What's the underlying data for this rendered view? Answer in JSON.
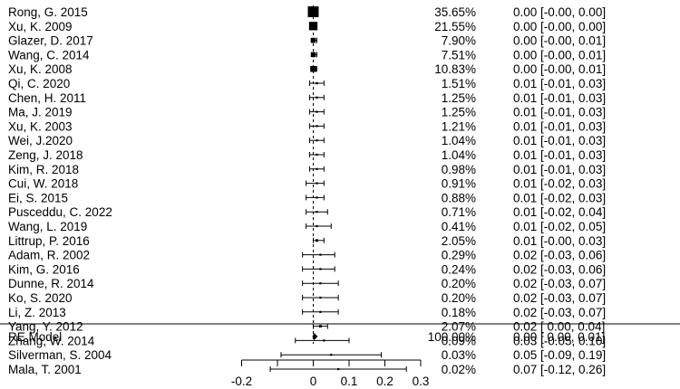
{
  "chart_data": {
    "type": "forest",
    "title": "",
    "xlabel": "",
    "xlim": [
      -0.2,
      0.3
    ],
    "xticks": [
      -0.2,
      -0.1,
      0,
      0.1,
      0.2,
      0.3
    ],
    "xtick_labels": [
      "-0.2",
      "",
      "0",
      "0.1",
      "0.2",
      "0.3"
    ],
    "reference_line": 0,
    "studies": [
      {
        "label": "Rong, G. 2015",
        "weight": "35.65%",
        "estimate": 0.0,
        "ci_low": -0.0,
        "ci_high": 0.0,
        "ci_text": "0.00 [-0.00, 0.00]"
      },
      {
        "label": "Xu, K. 2009",
        "weight": "21.55%",
        "estimate": 0.0,
        "ci_low": -0.0,
        "ci_high": 0.0,
        "ci_text": "0.00 [-0.00, 0.00]"
      },
      {
        "label": "Glazer, D. 2017",
        "weight": "7.90%",
        "estimate": 0.0,
        "ci_low": -0.0,
        "ci_high": 0.01,
        "ci_text": "0.00 [-0.00, 0.01]"
      },
      {
        "label": "Wang, C. 2014",
        "weight": "7.51%",
        "estimate": 0.0,
        "ci_low": -0.0,
        "ci_high": 0.01,
        "ci_text": "0.00 [-0.00, 0.01]"
      },
      {
        "label": "Xu, K. 2008",
        "weight": "10.83%",
        "estimate": 0.0,
        "ci_low": -0.0,
        "ci_high": 0.01,
        "ci_text": "0.00 [-0.00, 0.01]"
      },
      {
        "label": "Qi, C. 2020",
        "weight": "1.51%",
        "estimate": 0.01,
        "ci_low": -0.01,
        "ci_high": 0.03,
        "ci_text": "0.01 [-0.01, 0.03]"
      },
      {
        "label": "Chen, H. 2011",
        "weight": "1.25%",
        "estimate": 0.01,
        "ci_low": -0.01,
        "ci_high": 0.03,
        "ci_text": "0.01 [-0.01, 0.03]"
      },
      {
        "label": "Ma, J. 2019",
        "weight": "1.25%",
        "estimate": 0.01,
        "ci_low": -0.01,
        "ci_high": 0.03,
        "ci_text": "0.01 [-0.01, 0.03]"
      },
      {
        "label": "Xu, K. 2003",
        "weight": "1.21%",
        "estimate": 0.01,
        "ci_low": -0.01,
        "ci_high": 0.03,
        "ci_text": "0.01 [-0.01, 0.03]"
      },
      {
        "label": "Wei, J.2020",
        "weight": "1.04%",
        "estimate": 0.01,
        "ci_low": -0.01,
        "ci_high": 0.03,
        "ci_text": "0.01 [-0.01, 0.03]"
      },
      {
        "label": "Zeng, J. 2018",
        "weight": "1.04%",
        "estimate": 0.01,
        "ci_low": -0.01,
        "ci_high": 0.03,
        "ci_text": "0.01 [-0.01, 0.03]"
      },
      {
        "label": "Kim, R. 2018",
        "weight": "0.98%",
        "estimate": 0.01,
        "ci_low": -0.01,
        "ci_high": 0.03,
        "ci_text": "0.01 [-0.01, 0.03]"
      },
      {
        "label": "Cui, W. 2018",
        "weight": "0.91%",
        "estimate": 0.01,
        "ci_low": -0.02,
        "ci_high": 0.03,
        "ci_text": "0.01 [-0.02, 0.03]"
      },
      {
        "label": "Ei, S. 2015",
        "weight": "0.88%",
        "estimate": 0.01,
        "ci_low": -0.02,
        "ci_high": 0.03,
        "ci_text": "0.01 [-0.02, 0.03]"
      },
      {
        "label": "Pusceddu, C. 2022",
        "weight": "0.71%",
        "estimate": 0.01,
        "ci_low": -0.02,
        "ci_high": 0.04,
        "ci_text": "0.01 [-0.02, 0.04]"
      },
      {
        "label": "Wang, L. 2019",
        "weight": "0.41%",
        "estimate": 0.01,
        "ci_low": -0.02,
        "ci_high": 0.05,
        "ci_text": "0.01 [-0.02, 0.05]"
      },
      {
        "label": "Littrup, P. 2016",
        "weight": "2.05%",
        "estimate": 0.01,
        "ci_low": -0.0,
        "ci_high": 0.03,
        "ci_text": "0.01 [-0.00, 0.03]"
      },
      {
        "label": "Adam, R. 2002",
        "weight": "0.29%",
        "estimate": 0.02,
        "ci_low": -0.03,
        "ci_high": 0.06,
        "ci_text": "0.02 [-0.03, 0.06]"
      },
      {
        "label": "Kim, G. 2016",
        "weight": "0.24%",
        "estimate": 0.02,
        "ci_low": -0.03,
        "ci_high": 0.06,
        "ci_text": "0.02 [-0.03, 0.06]"
      },
      {
        "label": "Dunne, R. 2014",
        "weight": "0.20%",
        "estimate": 0.02,
        "ci_low": -0.03,
        "ci_high": 0.07,
        "ci_text": "0.02 [-0.03, 0.07]"
      },
      {
        "label": "Ko, S. 2020",
        "weight": "0.20%",
        "estimate": 0.02,
        "ci_low": -0.03,
        "ci_high": 0.07,
        "ci_text": "0.02 [-0.03, 0.07]"
      },
      {
        "label": "Li, Z. 2013",
        "weight": "0.18%",
        "estimate": 0.02,
        "ci_low": -0.03,
        "ci_high": 0.07,
        "ci_text": "0.02 [-0.03, 0.07]"
      },
      {
        "label": "Yang, Y. 2012",
        "weight": "2.07%",
        "estimate": 0.02,
        "ci_low": 0.0,
        "ci_high": 0.04,
        "ci_text": "0.02 [ 0.00, 0.04]"
      },
      {
        "label": "Zhang, W. 2014",
        "weight": "0.09%",
        "estimate": 0.03,
        "ci_low": -0.05,
        "ci_high": 0.1,
        "ci_text": "0.03 [-0.05, 0.10]"
      },
      {
        "label": "Silverman, S. 2004",
        "weight": "0.03%",
        "estimate": 0.05,
        "ci_low": -0.09,
        "ci_high": 0.19,
        "ci_text": "0.05 [-0.09, 0.19]"
      },
      {
        "label": "Mala, T. 2001",
        "weight": "0.02%",
        "estimate": 0.07,
        "ci_low": -0.12,
        "ci_high": 0.26,
        "ci_text": "0.07 [-0.12, 0.26]"
      }
    ],
    "summary": {
      "label": "RE Model",
      "weight": "100.00%",
      "estimate": 0.0,
      "ci_low": 0.0,
      "ci_high": 0.01,
      "ci_text": "0.00 [ 0.00, 0.01]"
    }
  }
}
